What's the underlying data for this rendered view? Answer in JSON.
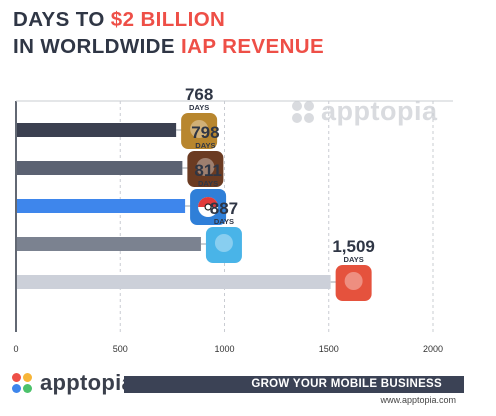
{
  "header": {
    "line1_prefix": "DAYS TO ",
    "line1_highlight": "$2 BILLION",
    "line2_prefix": "IN WORLDWIDE ",
    "line2_highlight": "IAP REVENUE"
  },
  "watermark": {
    "brand": "apptopia",
    "icon": "apptopia-logo-icon"
  },
  "footer": {
    "brand": "apptopia",
    "tagline": "GROW YOUR MOBILE BUSINESS",
    "url": "www.apptopia.com"
  },
  "colors": {
    "highlight": "#ee4f47",
    "title": "#2f3645",
    "bars": [
      "#3b4050",
      "#5b6272",
      "#3e86ec",
      "#7b8290",
      "#ccd0d9"
    ],
    "tagline_bar": "#3b4255"
  },
  "chart_data": {
    "type": "bar",
    "orientation": "horizontal",
    "values": [
      768,
      798,
      811,
      887,
      1509
    ],
    "value_labels": [
      "768",
      "798",
      "811",
      "887",
      "1,509"
    ],
    "unit_label": "DAYS",
    "icons": [
      "clash-of-clans-icon",
      "game-of-war-icon",
      "pokemon-go-icon",
      "clash-royale-icon",
      "candy-crush-icon"
    ],
    "xlim": [
      0,
      2000
    ],
    "xticks": [
      "0",
      "500",
      "1000",
      "1500",
      "2000"
    ],
    "grid": true,
    "legend": "none"
  }
}
